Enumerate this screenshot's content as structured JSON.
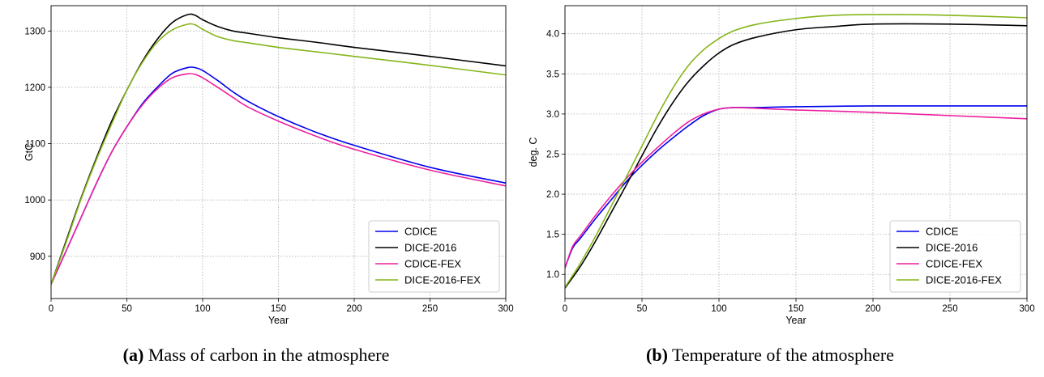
{
  "colors": {
    "CDICE": "#0000ee",
    "DICE-2016": "#000000",
    "CDICE-FEX": "#ee1f9e",
    "DICE-2016-FEX": "#86b51a"
  },
  "chart_data": [
    {
      "type": "line",
      "caption_tag": "(a)",
      "caption_text": "Mass of carbon in the atmosphere",
      "xlabel": "Year",
      "ylabel": "GtC",
      "xlim": [
        0,
        300
      ],
      "ylim": [
        825,
        1345
      ],
      "xticks": [
        0,
        50,
        100,
        150,
        200,
        250,
        300
      ],
      "yticks": [
        900,
        1000,
        1100,
        1200,
        1300
      ],
      "grid": true,
      "legend_position": "lower-right",
      "series": [
        {
          "name": "CDICE",
          "x": [
            0,
            10,
            20,
            30,
            40,
            50,
            60,
            70,
            80,
            90,
            95,
            100,
            110,
            120,
            130,
            150,
            175,
            200,
            250,
            300
          ],
          "y": [
            850,
            910,
            970,
            1030,
            1085,
            1130,
            1170,
            1200,
            1225,
            1235,
            1235,
            1230,
            1212,
            1192,
            1175,
            1148,
            1120,
            1097,
            1058,
            1030
          ]
        },
        {
          "name": "DICE-2016",
          "x": [
            0,
            10,
            20,
            30,
            40,
            50,
            60,
            70,
            80,
            90,
            95,
            100,
            110,
            120,
            130,
            150,
            175,
            200,
            250,
            300
          ],
          "y": [
            850,
            928,
            1005,
            1075,
            1140,
            1195,
            1245,
            1285,
            1315,
            1329,
            1328,
            1320,
            1308,
            1300,
            1296,
            1288,
            1280,
            1271,
            1255,
            1238
          ]
        },
        {
          "name": "CDICE-FEX",
          "x": [
            0,
            10,
            20,
            30,
            40,
            50,
            60,
            70,
            80,
            90,
            95,
            100,
            110,
            120,
            130,
            150,
            175,
            200,
            250,
            300
          ],
          "y": [
            850,
            910,
            970,
            1030,
            1085,
            1130,
            1168,
            1197,
            1217,
            1224,
            1223,
            1217,
            1200,
            1182,
            1165,
            1140,
            1113,
            1090,
            1053,
            1025
          ]
        },
        {
          "name": "DICE-2016-FEX",
          "x": [
            0,
            10,
            20,
            30,
            40,
            50,
            60,
            70,
            80,
            90,
            95,
            100,
            110,
            120,
            130,
            150,
            175,
            200,
            250,
            300
          ],
          "y": [
            850,
            925,
            1003,
            1072,
            1135,
            1195,
            1243,
            1280,
            1302,
            1312,
            1311,
            1303,
            1290,
            1283,
            1279,
            1271,
            1263,
            1255,
            1239,
            1222
          ]
        }
      ]
    },
    {
      "type": "line",
      "caption_tag": "(b)",
      "caption_text": "Temperature of the atmosphere",
      "xlabel": "Year",
      "ylabel": "deg. C",
      "xlim": [
        0,
        300
      ],
      "ylim": [
        0.7,
        4.35
      ],
      "xticks": [
        0,
        50,
        100,
        150,
        200,
        250,
        300
      ],
      "yticks": [
        1.0,
        1.5,
        2.0,
        2.5,
        3.0,
        3.5,
        4.0
      ],
      "tick_decimals": 1,
      "grid": true,
      "legend_position": "lower-right",
      "series": [
        {
          "name": "CDICE",
          "x": [
            0,
            5,
            10,
            20,
            30,
            40,
            50,
            60,
            70,
            80,
            90,
            100,
            110,
            125,
            150,
            200,
            250,
            300
          ],
          "y": [
            1.08,
            1.33,
            1.45,
            1.7,
            1.93,
            2.16,
            2.36,
            2.54,
            2.7,
            2.85,
            2.98,
            3.06,
            3.08,
            3.08,
            3.09,
            3.1,
            3.1,
            3.1
          ]
        },
        {
          "name": "DICE-2016",
          "x": [
            0,
            10,
            20,
            30,
            40,
            50,
            60,
            70,
            80,
            90,
            100,
            110,
            125,
            150,
            175,
            200,
            250,
            300
          ],
          "y": [
            0.83,
            1.1,
            1.42,
            1.77,
            2.12,
            2.48,
            2.83,
            3.14,
            3.4,
            3.6,
            3.76,
            3.87,
            3.96,
            4.05,
            4.09,
            4.12,
            4.12,
            4.1
          ]
        },
        {
          "name": "CDICE-FEX",
          "x": [
            0,
            5,
            10,
            20,
            30,
            40,
            50,
            60,
            70,
            80,
            90,
            100,
            110,
            125,
            150,
            200,
            250,
            300
          ],
          "y": [
            1.08,
            1.35,
            1.48,
            1.74,
            1.98,
            2.2,
            2.4,
            2.58,
            2.75,
            2.9,
            3.0,
            3.06,
            3.08,
            3.07,
            3.05,
            3.02,
            2.98,
            2.94
          ]
        },
        {
          "name": "DICE-2016-FEX",
          "x": [
            0,
            10,
            20,
            30,
            40,
            50,
            60,
            70,
            80,
            90,
            100,
            110,
            125,
            150,
            175,
            210,
            250,
            300
          ],
          "y": [
            0.84,
            1.14,
            1.48,
            1.85,
            2.22,
            2.6,
            2.98,
            3.32,
            3.6,
            3.8,
            3.94,
            4.04,
            4.12,
            4.19,
            4.23,
            4.24,
            4.23,
            4.2
          ]
        }
      ]
    }
  ]
}
